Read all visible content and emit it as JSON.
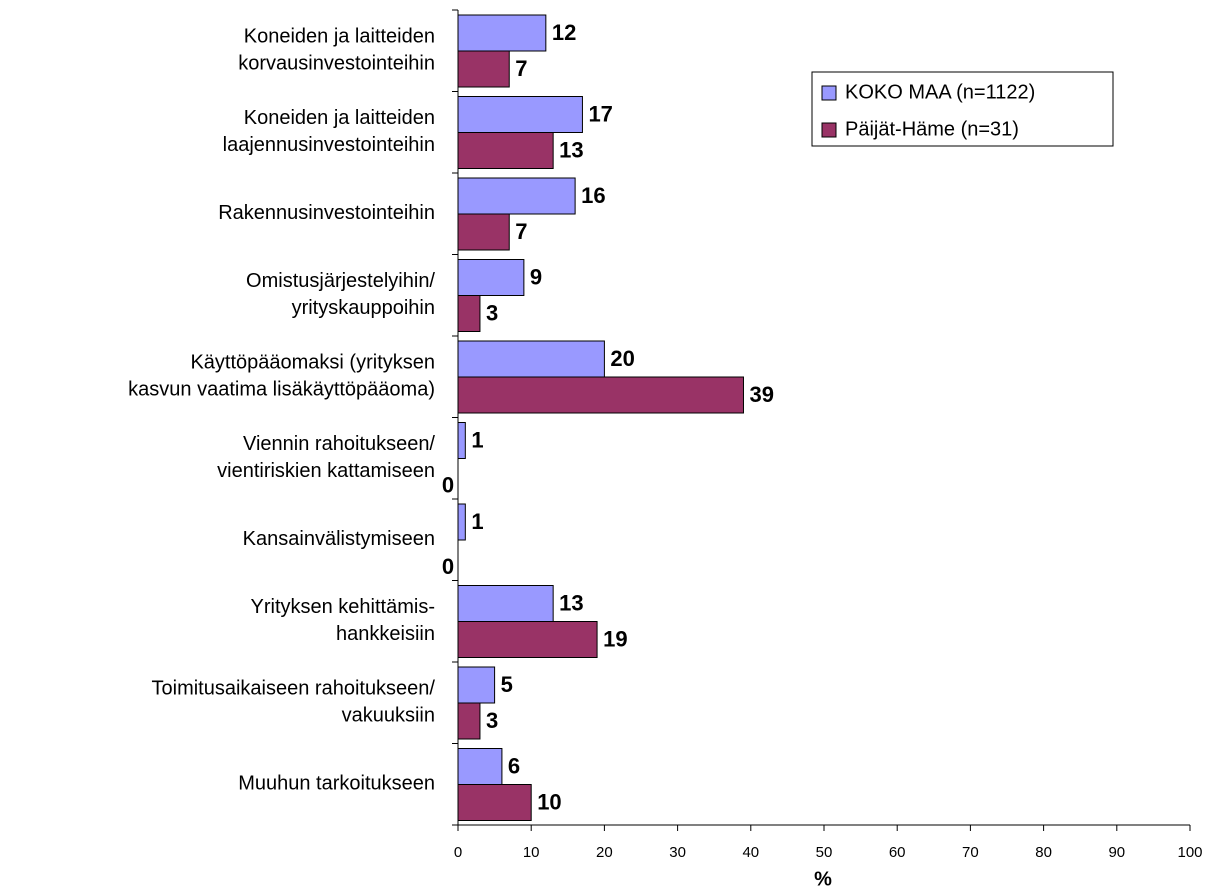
{
  "chart_data": {
    "type": "bar",
    "orientation": "horizontal",
    "categories": [
      "Koneiden ja laitteiden\nkorvausinvestointeihin",
      "Koneiden ja laitteiden\nlaajennusinvestointeihin",
      "Rakennusinvestointeihin",
      "Omistusjärjestelyihin/\nyrityskauppoihin",
      "Käyttöpääomaksi (yrityksen\nkasvun vaatima lisäkäyttöpääoma)",
      "Viennin rahoitukseen/\nvientiriskien kattamiseen",
      "Kansainvälistymiseen",
      "Yrityksen kehittämis-\nhankkeisiin",
      "Toimitusaikaiseen rahoitukseen/\nvakuuksiin",
      "Muuhun tarkoitukseen"
    ],
    "series": [
      {
        "name": "KOKO MAA (n=1122)",
        "color": "#9999ff",
        "values": [
          12,
          17,
          16,
          9,
          20,
          1,
          1,
          13,
          5,
          6
        ]
      },
      {
        "name": "Päijät-Häme (n=31)",
        "color": "#993366",
        "values": [
          7,
          13,
          7,
          3,
          39,
          0,
          0,
          19,
          3,
          10
        ]
      }
    ],
    "xlabel": "%",
    "xlim": [
      0,
      100
    ],
    "xticks": [
      0,
      10,
      20,
      30,
      40,
      50,
      60,
      70,
      80,
      90,
      100
    ],
    "legend": "upper right",
    "grid": false
  }
}
